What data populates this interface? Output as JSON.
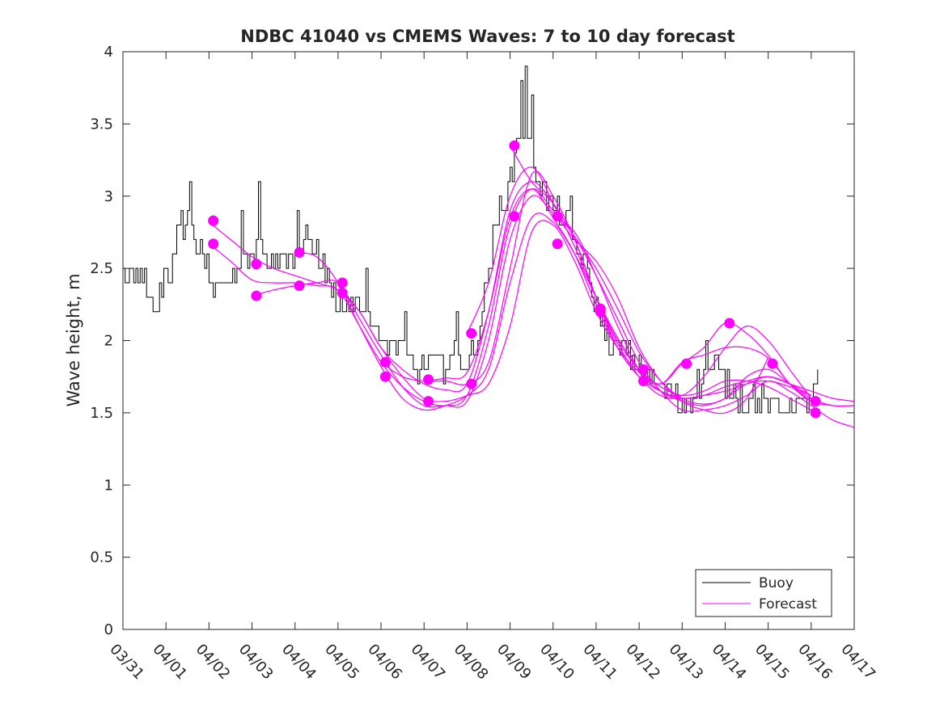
{
  "chart_data": {
    "type": "line",
    "title": "NDBC 41040 vs CMEMS Waves: 7 to 10 day forecast",
    "xlabel": "",
    "ylabel": "Wave height, m",
    "xlim": [
      0,
      17
    ],
    "ylim": [
      0,
      4
    ],
    "x_tick_labels": [
      "03/31",
      "04/01",
      "04/02",
      "04/03",
      "04/04",
      "04/05",
      "04/06",
      "04/07",
      "04/08",
      "04/09",
      "04/10",
      "04/11",
      "04/12",
      "04/13",
      "04/14",
      "04/15",
      "04/16",
      "04/17"
    ],
    "y_ticks": [
      0,
      0.5,
      1,
      1.5,
      2,
      2.5,
      3,
      3.5,
      4
    ],
    "y_tick_labels": [
      "0",
      "0.5",
      "1",
      "1.5",
      "2",
      "2.5",
      "3",
      "3.5",
      "4"
    ],
    "x_units": "days since 03/31",
    "legend": {
      "position": "bottom-right",
      "entries": [
        "Buoy",
        "Forecast"
      ]
    },
    "colors": {
      "buoy": "#000000",
      "forecast": "#ff00ff",
      "axes": "#262626"
    },
    "buoy_anchors": [
      [
        0.0,
        2.4
      ],
      [
        0.25,
        2.45
      ],
      [
        0.5,
        2.4
      ],
      [
        0.7,
        2.2
      ],
      [
        0.9,
        2.35
      ],
      [
        1.1,
        2.5
      ],
      [
        1.3,
        2.75
      ],
      [
        1.5,
        2.8
      ],
      [
        1.65,
        2.7
      ],
      [
        1.8,
        2.6
      ],
      [
        2.0,
        2.45
      ],
      [
        2.2,
        2.35
      ],
      [
        2.4,
        2.4
      ],
      [
        2.6,
        2.5
      ],
      [
        2.8,
        2.55
      ],
      [
        3.0,
        2.6
      ],
      [
        3.2,
        2.65
      ],
      [
        3.4,
        2.55
      ],
      [
        3.6,
        2.55
      ],
      [
        3.8,
        2.6
      ],
      [
        4.0,
        2.6
      ],
      [
        4.2,
        2.6
      ],
      [
        4.4,
        2.65
      ],
      [
        4.6,
        2.55
      ],
      [
        4.8,
        2.4
      ],
      [
        5.0,
        2.25
      ],
      [
        5.2,
        2.25
      ],
      [
        5.4,
        2.25
      ],
      [
        5.6,
        2.25
      ],
      [
        5.8,
        2.1
      ],
      [
        6.0,
        2.0
      ],
      [
        6.2,
        2.0
      ],
      [
        6.4,
        1.95
      ],
      [
        6.6,
        1.85
      ],
      [
        6.8,
        1.8
      ],
      [
        7.0,
        1.85
      ],
      [
        7.2,
        1.85
      ],
      [
        7.4,
        1.8
      ],
      [
        7.6,
        1.9
      ],
      [
        7.8,
        1.85
      ],
      [
        8.0,
        1.8
      ],
      [
        8.2,
        1.95
      ],
      [
        8.4,
        2.3
      ],
      [
        8.6,
        2.7
      ],
      [
        8.8,
        2.95
      ],
      [
        9.0,
        3.1
      ],
      [
        9.2,
        3.5
      ],
      [
        9.4,
        3.45
      ],
      [
        9.6,
        3.15
      ],
      [
        9.8,
        3.0
      ],
      [
        10.0,
        2.9
      ],
      [
        10.2,
        2.85
      ],
      [
        10.4,
        2.75
      ],
      [
        10.6,
        2.6
      ],
      [
        10.8,
        2.45
      ],
      [
        11.0,
        2.25
      ],
      [
        11.2,
        2.05
      ],
      [
        11.4,
        1.95
      ],
      [
        11.6,
        1.95
      ],
      [
        11.8,
        1.85
      ],
      [
        12.0,
        1.8
      ],
      [
        12.2,
        1.75
      ],
      [
        12.4,
        1.7
      ],
      [
        12.6,
        1.65
      ],
      [
        12.8,
        1.6
      ],
      [
        13.0,
        1.55
      ],
      [
        13.2,
        1.6
      ],
      [
        13.4,
        1.7
      ],
      [
        13.6,
        1.8
      ],
      [
        13.8,
        1.8
      ],
      [
        14.0,
        1.7
      ],
      [
        14.2,
        1.65
      ],
      [
        14.4,
        1.6
      ],
      [
        14.6,
        1.6
      ],
      [
        14.8,
        1.6
      ],
      [
        15.0,
        1.55
      ],
      [
        15.2,
        1.55
      ],
      [
        15.4,
        1.55
      ],
      [
        15.6,
        1.55
      ],
      [
        15.8,
        1.55
      ],
      [
        16.0,
        1.6
      ],
      [
        16.15,
        1.65
      ]
    ],
    "buoy_step_days": 0.05,
    "buoy_noise_m": 0.1,
    "buoy_spikes": [
      [
        1.55,
        3.1
      ],
      [
        2.75,
        2.9
      ],
      [
        3.15,
        3.1
      ],
      [
        4.05,
        2.9
      ],
      [
        4.25,
        2.8
      ],
      [
        5.65,
        2.5
      ],
      [
        6.55,
        2.2
      ],
      [
        7.75,
        2.2
      ],
      [
        9.25,
        3.8
      ],
      [
        9.35,
        3.9
      ],
      [
        9.5,
        3.7
      ],
      [
        10.4,
        3.0
      ],
      [
        13.55,
        2.0
      ],
      [
        16.15,
        1.8
      ]
    ],
    "forecast_series": [
      {
        "name": "Forecast",
        "x": [
          2.0,
          2.5,
          3.0,
          3.5,
          4.0,
          4.5,
          5.0,
          5.5,
          6.0,
          6.5,
          7.0,
          7.5,
          8.0,
          8.5,
          9.0,
          9.5,
          10.0,
          10.5,
          11.0,
          11.5,
          12.0,
          12.5,
          13.0,
          13.5,
          14.0,
          14.5,
          15.0,
          15.5,
          16.0,
          16.5,
          17.0
        ],
        "y": [
          2.82,
          2.7,
          2.58,
          2.5,
          2.45,
          2.4,
          2.35,
          2.2,
          1.95,
          1.8,
          1.7,
          1.66,
          1.7,
          2.2,
          2.9,
          3.1,
          2.95,
          2.72,
          2.5,
          2.22,
          1.92,
          1.72,
          1.6,
          1.56,
          1.6,
          1.75,
          1.8,
          1.7,
          1.6,
          1.55,
          1.55
        ]
      },
      {
        "name": "Forecast",
        "x": [
          2.0,
          2.5,
          3.0,
          3.5,
          4.0,
          4.5,
          5.0,
          5.5,
          6.0,
          6.5,
          7.0,
          7.5,
          8.0,
          8.5,
          9.0,
          9.5,
          10.0,
          10.5,
          11.0,
          11.5,
          12.0,
          12.5,
          13.0,
          13.5,
          14.0,
          14.5,
          15.0,
          15.5,
          16.0,
          16.5,
          17.0
        ],
        "y": [
          2.67,
          2.55,
          2.42,
          2.4,
          2.4,
          2.38,
          2.35,
          2.1,
          1.85,
          1.68,
          1.58,
          1.55,
          1.62,
          2.1,
          2.8,
          3.05,
          2.9,
          2.72,
          2.45,
          2.15,
          1.85,
          1.65,
          1.52,
          1.52,
          1.55,
          1.62,
          1.72,
          1.65,
          1.55,
          1.45,
          1.4
        ]
      },
      {
        "name": "Forecast",
        "x": [
          3.0,
          3.5,
          4.0,
          4.5,
          5.0,
          5.5,
          6.0,
          6.5,
          7.0,
          7.5,
          8.0,
          8.5,
          9.0,
          9.5,
          10.0,
          10.5,
          11.0,
          11.5,
          12.0,
          12.5,
          13.0,
          13.5,
          14.0,
          14.5,
          15.0
        ],
        "y": [
          2.31,
          2.35,
          2.38,
          2.4,
          2.4,
          2.15,
          1.9,
          1.68,
          1.55,
          1.55,
          1.58,
          2.0,
          2.7,
          3.0,
          2.88,
          2.7,
          2.55,
          2.3,
          1.95,
          1.72,
          1.58,
          1.52,
          1.5,
          1.6,
          1.88
        ]
      },
      {
        "name": "Forecast",
        "x": [
          4.0,
          4.5,
          5.0,
          5.5,
          6.0,
          6.5,
          7.0,
          7.5,
          8.0,
          8.5,
          9.0,
          9.5,
          10.0,
          10.5,
          11.0,
          11.5,
          12.0,
          12.5,
          13.0,
          13.5,
          14.0,
          14.5,
          15.0,
          15.5,
          16.0
        ],
        "y": [
          2.61,
          2.58,
          2.4,
          2.1,
          1.82,
          1.6,
          1.52,
          1.55,
          1.62,
          1.8,
          2.4,
          2.85,
          2.82,
          2.6,
          2.3,
          2.02,
          1.8,
          1.68,
          1.62,
          1.65,
          1.72,
          1.72,
          1.68,
          1.6,
          1.52
        ]
      },
      {
        "name": "Forecast",
        "x": [
          5.0,
          5.5,
          6.0,
          6.5,
          7.0,
          7.5,
          8.0,
          8.5,
          9.0,
          9.5,
          10.0,
          10.5,
          11.0,
          11.5,
          12.0,
          12.5,
          13.0,
          13.5,
          14.0,
          14.5,
          15.0,
          15.5,
          16.0
        ],
        "y": [
          2.38,
          2.2,
          1.95,
          1.75,
          1.6,
          1.58,
          1.62,
          1.7,
          2.1,
          2.75,
          2.8,
          2.55,
          2.2,
          1.95,
          1.78,
          1.65,
          1.58,
          1.55,
          1.6,
          1.7,
          1.72,
          1.68,
          1.62
        ]
      },
      {
        "name": "Forecast",
        "x": [
          6.0,
          6.5,
          7.0,
          7.5,
          8.0,
          8.5,
          9.0,
          9.5,
          10.0,
          10.5,
          11.0,
          11.5,
          12.0,
          12.5,
          13.0,
          13.5,
          14.0,
          14.5,
          15.0,
          15.5,
          16.0,
          16.5,
          17.0
        ],
        "y": [
          1.85,
          1.75,
          1.72,
          1.72,
          1.7,
          1.85,
          2.5,
          3.15,
          3.0,
          2.7,
          2.3,
          1.98,
          1.75,
          1.62,
          1.6,
          1.62,
          1.68,
          1.72,
          1.75,
          1.7,
          1.65,
          1.6,
          1.58
        ]
      },
      {
        "name": "Forecast",
        "x": [
          7.0,
          7.5,
          8.0,
          8.5,
          9.0,
          9.5,
          10.0,
          10.5,
          11.0,
          11.5,
          12.0,
          12.5,
          13.0,
          13.5,
          14.0,
          14.5,
          15.0,
          15.5,
          16.0
        ],
        "y": [
          1.72,
          1.74,
          1.78,
          2.2,
          2.85,
          3.05,
          2.85,
          2.6,
          2.25,
          1.95,
          1.75,
          1.65,
          1.6,
          1.62,
          1.65,
          1.7,
          1.75,
          1.7,
          1.62
        ]
      },
      {
        "name": "Forecast",
        "x": [
          8.0,
          8.5,
          9.0,
          9.5,
          10.0,
          10.5,
          11.0,
          11.5,
          12.0,
          12.5,
          13.0,
          13.5,
          14.0,
          14.5,
          15.0,
          15.5,
          16.0
        ],
        "y": [
          2.05,
          2.4,
          3.0,
          3.2,
          2.95,
          2.65,
          2.3,
          2.0,
          1.8,
          1.7,
          1.85,
          1.9,
          1.95,
          1.95,
          1.88,
          1.7,
          1.58
        ]
      },
      {
        "name": "Forecast",
        "x": [
          9.0,
          9.5,
          10.0,
          10.5,
          11.0,
          11.5,
          12.0,
          12.5,
          13.0,
          13.5,
          14.0,
          14.5,
          15.0,
          15.5,
          16.0
        ],
        "y": [
          3.35,
          3.1,
          2.95,
          2.7,
          2.3,
          1.95,
          1.75,
          1.65,
          1.62,
          1.75,
          1.95,
          2.1,
          2.0,
          1.8,
          1.6
        ]
      },
      {
        "name": "Forecast",
        "x": [
          10.0,
          10.5,
          11.0,
          11.5,
          12.0,
          12.5,
          13.0,
          13.5,
          14.0,
          14.5,
          15.0,
          15.5,
          16.0,
          16.5
        ],
        "y": [
          2.86,
          2.75,
          2.45,
          2.1,
          1.8,
          1.7,
          1.84,
          1.95,
          2.12,
          2.05,
          1.9,
          1.7,
          1.58,
          1.55
        ]
      }
    ],
    "forecast_markers": [
      [
        2.1,
        2.83
      ],
      [
        2.1,
        2.67
      ],
      [
        3.1,
        2.53
      ],
      [
        3.1,
        2.31
      ],
      [
        4.1,
        2.61
      ],
      [
        4.1,
        2.38
      ],
      [
        5.1,
        2.4
      ],
      [
        5.1,
        2.33
      ],
      [
        6.1,
        1.85
      ],
      [
        6.1,
        1.75
      ],
      [
        7.1,
        1.73
      ],
      [
        7.1,
        1.58
      ],
      [
        8.1,
        2.05
      ],
      [
        8.1,
        1.7
      ],
      [
        9.1,
        3.35
      ],
      [
        9.1,
        2.86
      ],
      [
        10.1,
        2.86
      ],
      [
        10.1,
        2.67
      ],
      [
        11.1,
        2.22
      ],
      [
        11.1,
        2.2
      ],
      [
        12.1,
        1.8
      ],
      [
        12.1,
        1.72
      ],
      [
        13.1,
        1.84
      ],
      [
        14.1,
        2.12
      ],
      [
        15.1,
        1.84
      ],
      [
        16.1,
        1.58
      ],
      [
        16.1,
        1.5
      ]
    ]
  }
}
